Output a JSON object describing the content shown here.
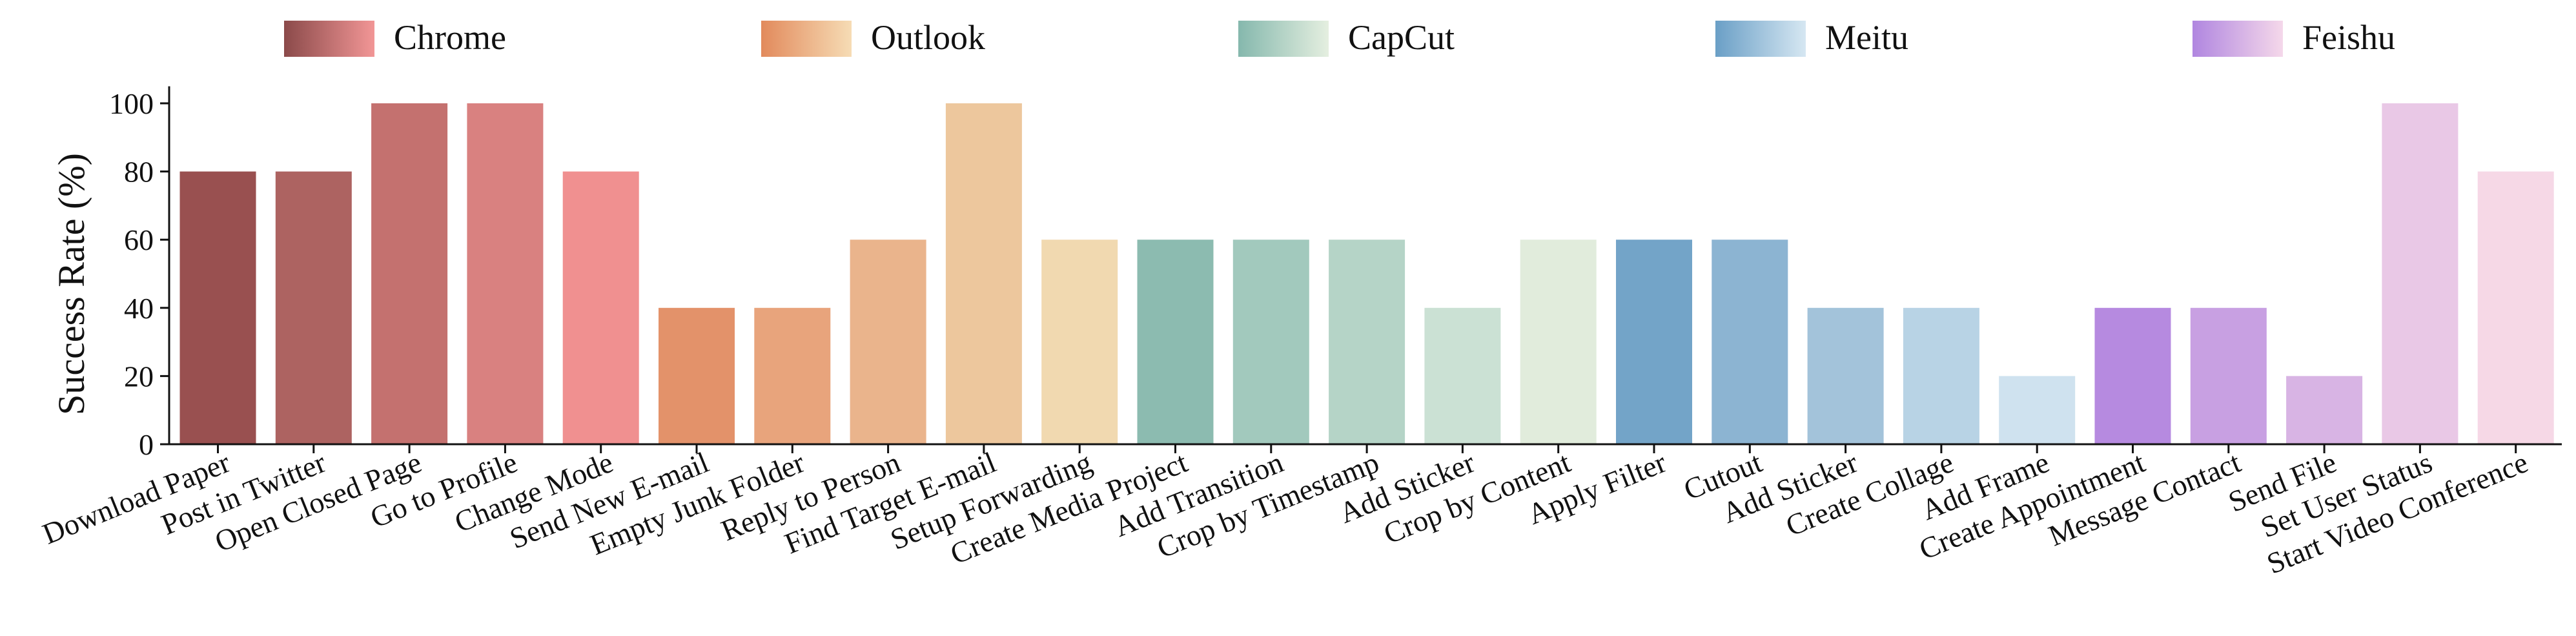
{
  "chart_data": {
    "type": "bar",
    "ylabel": "Success Rate (%)",
    "xlabel": "",
    "ylim": [
      0,
      105
    ],
    "yticks": [
      0,
      20,
      40,
      60,
      80,
      100
    ],
    "legend_placement": "top",
    "grid": false,
    "groups": [
      {
        "name": "Chrome",
        "gradient": [
          "#8b4a4a",
          "#f29696"
        ],
        "tasks": [
          {
            "label": "Download Paper",
            "value": 80,
            "color": "#995050"
          },
          {
            "label": "Post in Twitter",
            "value": 80,
            "color": "#ad6361"
          },
          {
            "label": "Open Closed Page",
            "value": 100,
            "color": "#c4716f"
          },
          {
            "label": "Go to Profile",
            "value": 100,
            "color": "#d98180"
          },
          {
            "label": "Change Mode",
            "value": 80,
            "color": "#f09090"
          }
        ]
      },
      {
        "name": "Outlook",
        "gradient": [
          "#e28a5c",
          "#f6dcb5"
        ],
        "tasks": [
          {
            "label": "Send New E-mail",
            "value": 40,
            "color": "#e3926a"
          },
          {
            "label": "Empty Junk Folder",
            "value": 40,
            "color": "#e8a47c"
          },
          {
            "label": "Reply to Person",
            "value": 60,
            "color": "#eab48c"
          },
          {
            "label": "Find Target E-mail",
            "value": 100,
            "color": "#edc79d"
          },
          {
            "label": "Setup Forwarding",
            "value": 60,
            "color": "#f1d9b0"
          }
        ]
      },
      {
        "name": "CapCut",
        "gradient": [
          "#85b8ad",
          "#e5efe0"
        ],
        "tasks": [
          {
            "label": "Create Media Project",
            "value": 60,
            "color": "#8cbbb0"
          },
          {
            "label": "Add Transition",
            "value": 60,
            "color": "#a2c9bd"
          },
          {
            "label": "Crop by Timestamp",
            "value": 60,
            "color": "#b5d4c7"
          },
          {
            "label": "Add Sticker",
            "value": 40,
            "color": "#cbe1d4"
          },
          {
            "label": "Crop by Content",
            "value": 60,
            "color": "#e1ecdc"
          }
        ]
      },
      {
        "name": "Meitu",
        "gradient": [
          "#6a9fc6",
          "#d6e7f2"
        ],
        "tasks": [
          {
            "label": "Apply Filter",
            "value": 60,
            "color": "#73a4c8"
          },
          {
            "label": "Cutout",
            "value": 60,
            "color": "#8cb4d2"
          },
          {
            "label": "Add Sticker",
            "value": 40,
            "color": "#a3c3da"
          },
          {
            "label": "Create Collage",
            "value": 40,
            "color": "#b8d3e5"
          },
          {
            "label": "Add Frame",
            "value": 20,
            "color": "#cfe2ef"
          }
        ]
      },
      {
        "name": "Feishu",
        "gradient": [
          "#b086e0",
          "#f5d8ea"
        ],
        "tasks": [
          {
            "label": "Create Appointment",
            "value": 40,
            "color": "#b68ae0"
          },
          {
            "label": "Message Contact",
            "value": 40,
            "color": "#c8a0e2"
          },
          {
            "label": "Send File",
            "value": 20,
            "color": "#d8b4e4"
          },
          {
            "label": "Set User Status",
            "value": 100,
            "color": "#e9c8e6"
          },
          {
            "label": "Start Video Conference",
            "value": 80,
            "color": "#f6d8e6"
          }
        ]
      }
    ]
  }
}
